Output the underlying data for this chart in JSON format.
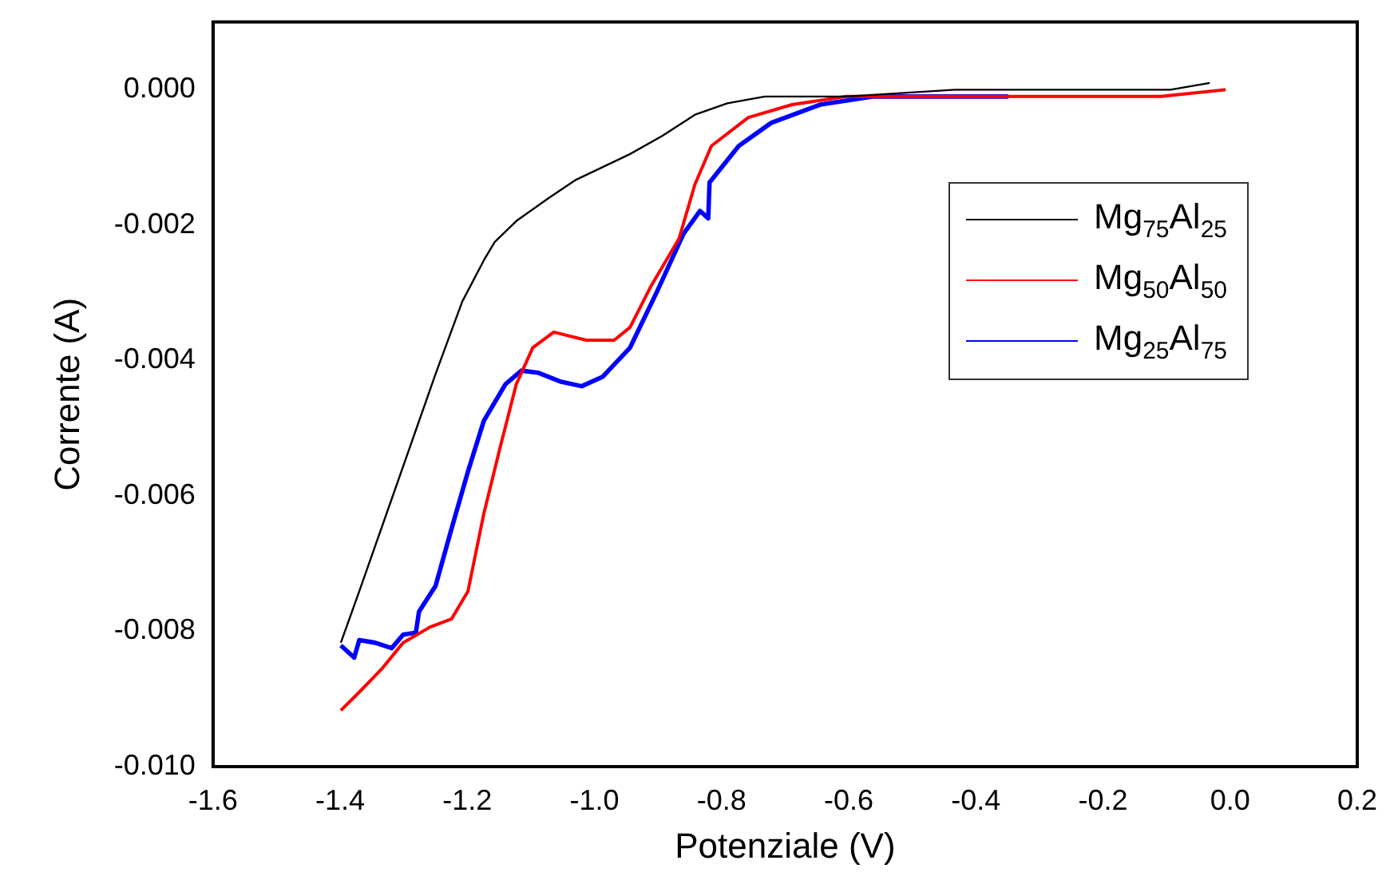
{
  "chart_data": {
    "type": "line",
    "xlabel": "Potenziale (V)",
    "ylabel": "Corrente (A)",
    "xlim": [
      -1.6,
      0.2
    ],
    "xticks": [
      {
        "value": -1.6,
        "label": "-1.6"
      },
      {
        "value": -1.4,
        "label": "-1.4"
      },
      {
        "value": -1.2,
        "label": "-1.2"
      },
      {
        "value": -1.0,
        "label": "-1.0"
      },
      {
        "value": -0.8,
        "label": "-0.8"
      },
      {
        "value": -0.6,
        "label": "-0.6"
      },
      {
        "value": -0.4,
        "label": "-0.4"
      },
      {
        "value": -0.2,
        "label": "-0.2"
      },
      {
        "value": 0,
        "label": "0.0"
      },
      {
        "value": 0.2,
        "label": "0.2"
      }
    ],
    "ylim": [
      -0.01,
      0.001
    ],
    "yticks": [
      {
        "value": -0.01,
        "label": "-0.010"
      },
      {
        "value": -0.008,
        "label": "-0.008"
      },
      {
        "value": -0.006,
        "label": "-0.006"
      },
      {
        "value": -0.004,
        "label": "-0.004"
      },
      {
        "value": -0.002,
        "label": "-0.002"
      },
      {
        "value": 0,
        "label": "0.000"
      }
    ],
    "grid": false,
    "legend": "top right",
    "marker": "none",
    "line_style": "solid",
    "series": [
      {
        "name": "Mg$_{75}$Al$_{25}$",
        "color": "#000000",
        "x": [
          -1.399,
          -1.37,
          -1.327,
          -1.284,
          -1.25,
          -1.208,
          -1.174,
          -1.157,
          -1.123,
          -1.072,
          -1.029,
          -0.944,
          -0.893,
          -0.842,
          -0.791,
          -0.732,
          -0.604,
          -0.433,
          -0.262,
          -0.094,
          -0.032
        ],
        "values": [
          -0.00817,
          -0.00741,
          -0.00626,
          -0.00511,
          -0.0042,
          -0.00313,
          -0.00252,
          -0.00225,
          -0.00194,
          -0.0016,
          -0.00133,
          -0.00095,
          -0.00068,
          -0.00037,
          -0.0002,
          -0.0001,
          -0.0001,
          0,
          0,
          0,
          0.0001
        ]
      },
      {
        "name": "Mg$_{50}$Al$_{50}$",
        "color": "#ff0000",
        "x": [
          -1.399,
          -1.37,
          -1.335,
          -1.301,
          -1.259,
          -1.225,
          -1.199,
          -1.174,
          -1.148,
          -1.123,
          -1.097,
          -1.064,
          -1.013,
          -0.969,
          -0.944,
          -0.911,
          -0.867,
          -0.842,
          -0.816,
          -0.758,
          -0.689,
          -0.604,
          -0.518,
          -0.39,
          -0.306,
          -0.237,
          -0.196,
          -0.109,
          -0.007
        ],
        "values": [
          -0.00917,
          -0.0089,
          -0.00856,
          -0.00817,
          -0.00794,
          -0.00782,
          -0.00741,
          -0.00626,
          -0.00527,
          -0.00435,
          -0.00381,
          -0.00358,
          -0.0037,
          -0.0037,
          -0.00351,
          -0.0029,
          -0.0022,
          -0.0014,
          -0.00083,
          -0.00041,
          -0.00022,
          -0.0001,
          -0.0001,
          -0.0001,
          -0.0001,
          -0.0001,
          -0.0001,
          -0.0001,
          0
        ]
      },
      {
        "name": "Mg$_{25}$Al$_{75}$",
        "color": "#0000ff",
        "x": [
          -1.399,
          -1.378,
          -1.37,
          -1.345,
          -1.319,
          -1.301,
          -1.281,
          -1.276,
          -1.25,
          -1.225,
          -1.199,
          -1.174,
          -1.14,
          -1.115,
          -1.089,
          -1.054,
          -1.02,
          -0.987,
          -0.944,
          -0.901,
          -0.86,
          -0.834,
          -0.821,
          -0.819,
          -0.773,
          -0.722,
          -0.645,
          -0.561,
          -0.433,
          -0.349
        ],
        "values": [
          -0.00821,
          -0.00839,
          -0.00813,
          -0.00817,
          -0.00825,
          -0.00805,
          -0.00802,
          -0.00771,
          -0.00733,
          -0.00649,
          -0.00564,
          -0.00489,
          -0.00435,
          -0.00415,
          -0.00418,
          -0.00431,
          -0.00438,
          -0.00424,
          -0.00381,
          -0.00297,
          -0.00213,
          -0.00179,
          -0.0019,
          -0.00137,
          -0.00083,
          -0.00049,
          -0.00022,
          -0.0001,
          -0.0001,
          -0.0001
        ]
      }
    ]
  }
}
